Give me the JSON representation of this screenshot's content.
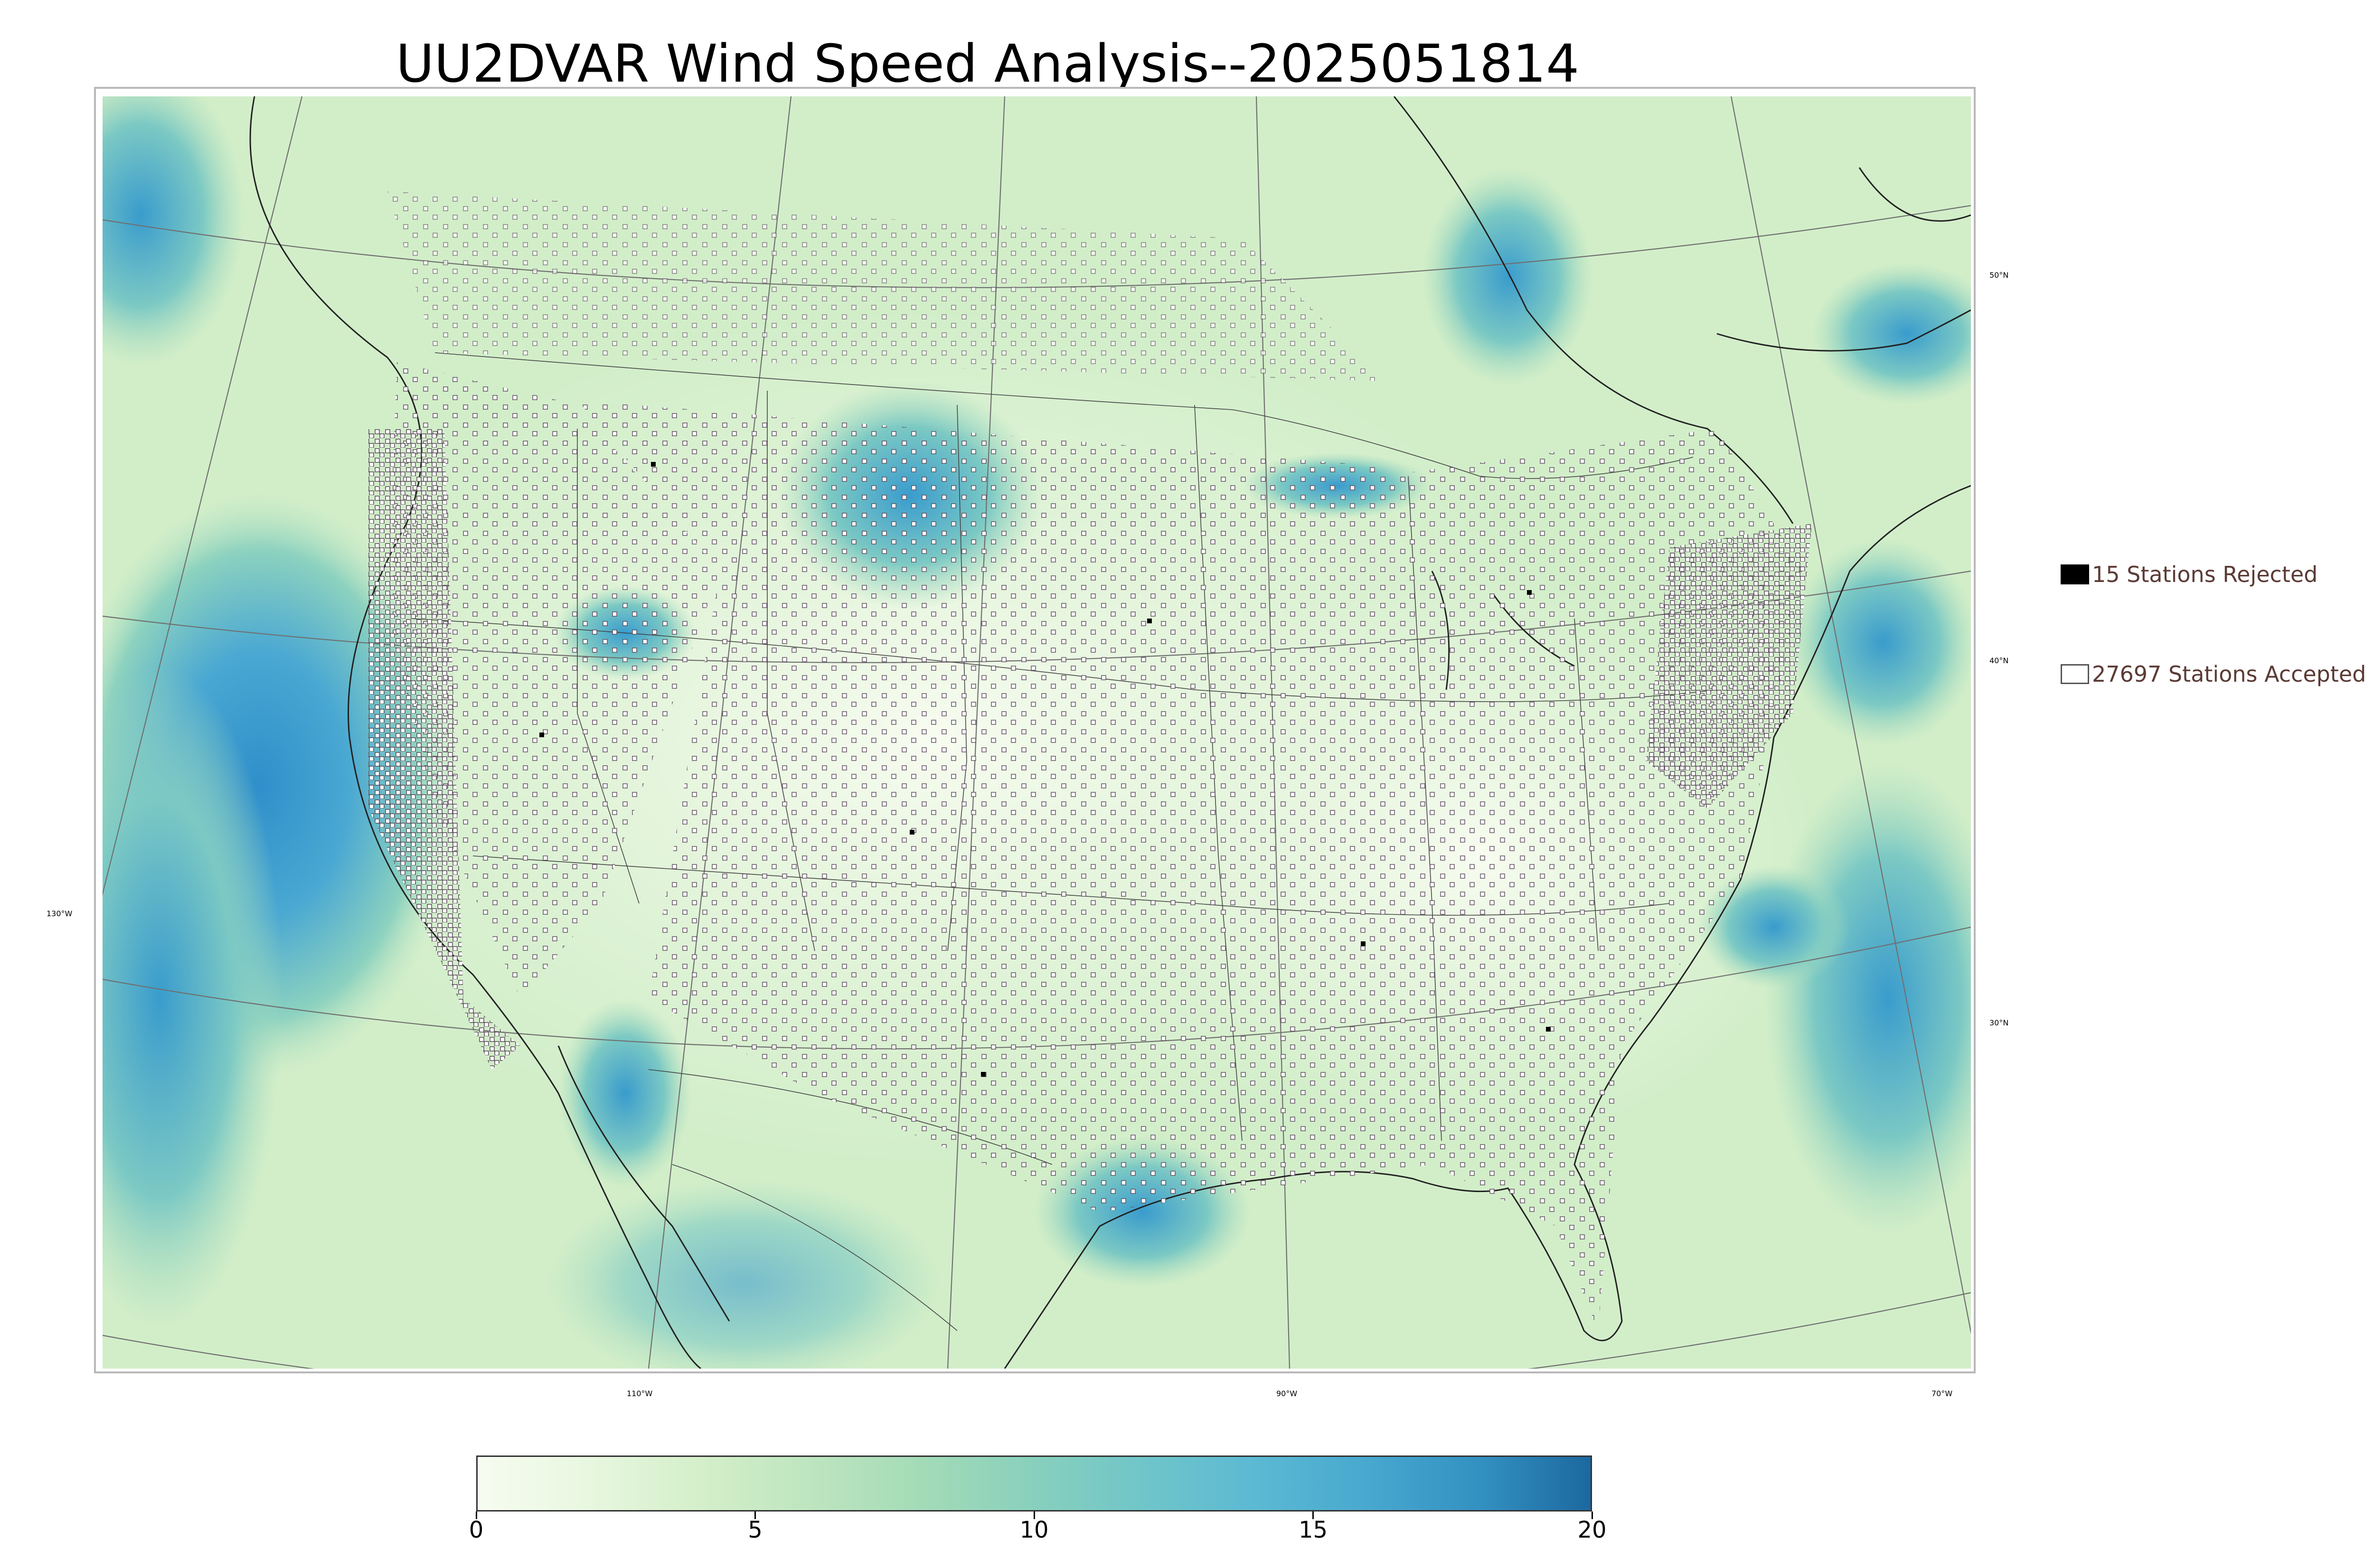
{
  "title": "UU2DVAR Wind Speed Analysis--2025051814",
  "map": {
    "longitude_labels": [
      "130°W",
      "110°W",
      "90°W",
      "70°W"
    ],
    "latitude_labels": [
      "50°N",
      "40°N",
      "30°N"
    ]
  },
  "legend": {
    "rejected": {
      "label": "15 Stations Rejected",
      "color": "#000000"
    },
    "accepted": {
      "label": "27697 Stations Accepted",
      "color": "#ffffff"
    }
  },
  "colorbar": {
    "min": 0,
    "max": 20,
    "tick_labels": [
      "0",
      "5",
      "10",
      "15",
      "20"
    ],
    "colors": [
      "#f7fcf0",
      "#e8f7e0",
      "#d4efc9",
      "#bde5bf",
      "#a3dbb7",
      "#88d0bd",
      "#6fc5c9",
      "#5bb9d3",
      "#48a8cf",
      "#3391c1",
      "#1c68a0"
    ]
  }
}
